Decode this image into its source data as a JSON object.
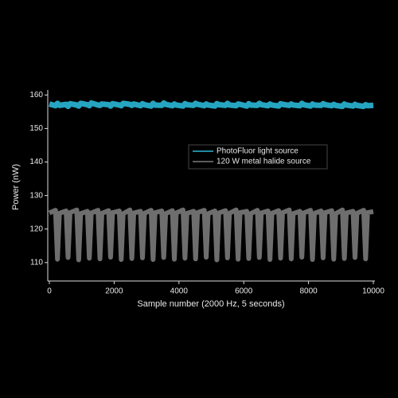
{
  "chart_data": {
    "type": "line",
    "x_label": "Sample number (2000 Hz, 5 seconds)",
    "y_label": "Power (nW)",
    "x": [
      0,
      190,
      250,
      310,
      518,
      578,
      638,
      846,
      906,
      966,
      1174,
      1234,
      1294,
      1502,
      1562,
      1622,
      1830,
      1890,
      1950,
      2158,
      2218,
      2278,
      2486,
      2546,
      2606,
      2814,
      2874,
      2934,
      3142,
      3202,
      3262,
      3470,
      3530,
      3590,
      3798,
      3858,
      3918,
      4126,
      4186,
      4246,
      4454,
      4514,
      4574,
      4782,
      4842,
      4902,
      5110,
      5170,
      5230,
      5438,
      5498,
      5558,
      5766,
      5826,
      5886,
      6094,
      6154,
      6214,
      6422,
      6482,
      6542,
      6750,
      6810,
      6870,
      7078,
      7138,
      7198,
      7406,
      7466,
      7526,
      7734,
      7794,
      7854,
      8062,
      8122,
      8182,
      8390,
      8450,
      8510,
      8718,
      8778,
      8838,
      9046,
      9106,
      9166,
      9374,
      9434,
      9494,
      9702,
      9762,
      9822,
      10000
    ],
    "series": [
      {
        "name": "PhotoFluor light source",
        "color": "#2ab7d6",
        "values": [
          157.3,
          156.8,
          157.5,
          156.9,
          157.2,
          156.6,
          157.4,
          157.0,
          156.7,
          157.5,
          157.1,
          156.8,
          157.6,
          157.0,
          156.9,
          157.3,
          157.1,
          156.7,
          157.4,
          157.0,
          156.8,
          157.5,
          157.2,
          156.9,
          157.3,
          156.8,
          157.4,
          157.1,
          156.7,
          157.5,
          157.0,
          156.9,
          157.6,
          157.2,
          156.8,
          157.3,
          157.0,
          156.7,
          157.4,
          157.1,
          156.9,
          157.5,
          157.2,
          156.8,
          157.3,
          157.0,
          156.7,
          157.4,
          157.1,
          156.9,
          157.5,
          157.0,
          156.8,
          157.3,
          157.2,
          156.7,
          157.4,
          157.0,
          156.9,
          157.5,
          157.1,
          156.8,
          157.3,
          157.0,
          156.7,
          157.4,
          157.2,
          156.9,
          157.3,
          157.0,
          156.8,
          157.5,
          157.1,
          156.7,
          157.3,
          157.0,
          156.9,
          157.4,
          157.1,
          156.8,
          157.2,
          156.9,
          156.6,
          157.3,
          157.0,
          156.7,
          157.2,
          156.9,
          156.6,
          157.1,
          156.8,
          156.9
        ]
      },
      {
        "name": "120 W metal halide source",
        "color": "#7a7a7a",
        "values": [
          124.8,
          125.6,
          111.0,
          124.7,
          125.4,
          111.5,
          124.9,
          125.7,
          110.8,
          124.6,
          125.3,
          111.3,
          124.8,
          125.6,
          111.1,
          124.7,
          125.5,
          111.6,
          124.9,
          125.4,
          110.9,
          124.6,
          125.7,
          111.2,
          124.8,
          125.3,
          111.4,
          124.7,
          125.6,
          110.9,
          124.9,
          125.4,
          111.5,
          124.6,
          125.5,
          111.0,
          124.8,
          125.7,
          111.3,
          124.7,
          125.3,
          111.1,
          124.9,
          125.6,
          111.6,
          124.6,
          125.4,
          110.8,
          124.8,
          125.5,
          111.4,
          124.7,
          125.7,
          111.0,
          124.9,
          125.3,
          111.2,
          124.6,
          125.6,
          111.5,
          124.8,
          125.4,
          110.9,
          124.7,
          125.5,
          111.3,
          124.9,
          125.7,
          111.1,
          124.6,
          125.3,
          111.6,
          124.8,
          125.6,
          110.9,
          124.7,
          125.4,
          111.4,
          124.9,
          125.5,
          111.0,
          124.6,
          125.7,
          111.2,
          124.8,
          125.3,
          111.5,
          124.7,
          125.6,
          111.1,
          124.9,
          125.2
        ]
      }
    ],
    "xlim": [
      0,
      10000
    ],
    "xticks": [
      0,
      2000,
      4000,
      6000,
      8000,
      10000
    ],
    "ylim": [
      104.5,
      161.5
    ],
    "yticks": [
      110,
      120,
      130,
      140,
      150,
      160
    ],
    "grid": false
  }
}
